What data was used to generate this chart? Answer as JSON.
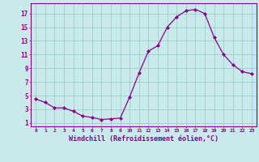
{
  "x": [
    0,
    1,
    2,
    3,
    4,
    5,
    6,
    7,
    8,
    9,
    10,
    11,
    12,
    13,
    14,
    15,
    16,
    17,
    18,
    19,
    20,
    21,
    22,
    23
  ],
  "y": [
    4.5,
    4.0,
    3.2,
    3.2,
    2.7,
    2.0,
    1.8,
    1.5,
    1.6,
    1.7,
    4.8,
    8.3,
    11.5,
    12.3,
    15.0,
    16.5,
    17.4,
    17.6,
    17.0,
    13.5,
    11.0,
    9.5,
    8.5,
    8.2
  ],
  "line_color": "#880088",
  "marker": "D",
  "marker_size": 2,
  "bg_color": "#c8eaea",
  "grid_color": "#a0cccc",
  "xlabel": "Windchill (Refroidissement éolien,°C)",
  "xlabel_fontsize": 6.0,
  "xlabel_color": "#880088",
  "ytick_labels": [
    "1",
    "3",
    "5",
    "7",
    "9",
    "11",
    "13",
    "15",
    "17"
  ],
  "ytick_values": [
    1,
    3,
    5,
    7,
    9,
    11,
    13,
    15,
    17
  ],
  "xtick_labels": [
    "0",
    "1",
    "2",
    "3",
    "4",
    "5",
    "6",
    "7",
    "8",
    "9",
    "10",
    "11",
    "12",
    "13",
    "14",
    "15",
    "16",
    "17",
    "18",
    "19",
    "20",
    "21",
    "22",
    "23"
  ],
  "ylim": [
    0.5,
    18.5
  ],
  "xlim": [
    -0.5,
    23.5
  ]
}
